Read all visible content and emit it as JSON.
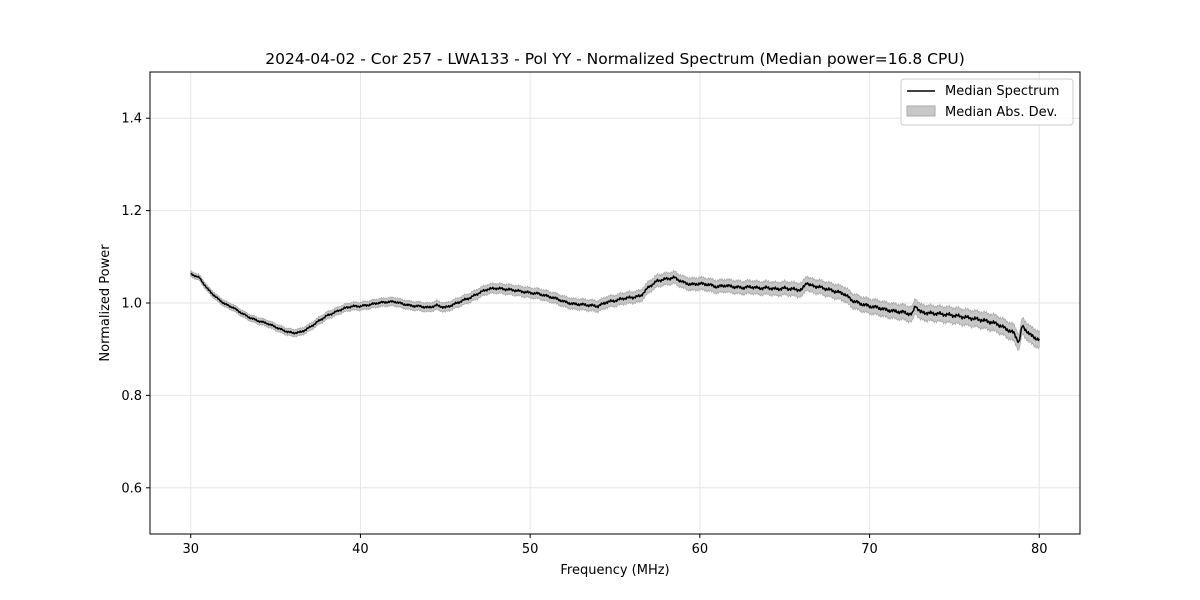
{
  "chart_data": {
    "type": "line",
    "title": "2024-04-02 - Cor 257 - LWA133 - Pol YY - Normalized Spectrum (Median power=16.8 CPU)",
    "xlabel": "Frequency (MHz)",
    "ylabel": "Normalized Power",
    "xlim": [
      27.6,
      82.4
    ],
    "ylim": [
      0.5,
      1.5
    ],
    "xticks": [
      30,
      40,
      50,
      60,
      70,
      80
    ],
    "yticks": [
      0.6,
      0.8,
      1.0,
      1.2,
      1.4
    ],
    "xtick_labels": [
      "30",
      "40",
      "50",
      "60",
      "70",
      "80"
    ],
    "ytick_labels": [
      "0.6",
      "0.8",
      "1.0",
      "1.2",
      "1.4"
    ],
    "grid": true,
    "legend_position": "top-right",
    "colors": {
      "median": "#000000",
      "mad_fill": "#bdbdbd",
      "mad_edge": "#a0a0a0",
      "grid": "#e6e6e6"
    },
    "series": [
      {
        "name": "Median Spectrum",
        "kind": "line",
        "x": [
          30.0,
          30.5,
          31.0,
          31.5,
          32.0,
          32.5,
          33.0,
          33.5,
          34.0,
          34.5,
          35.0,
          35.5,
          36.0,
          36.5,
          37.0,
          37.5,
          38.0,
          38.5,
          39.0,
          39.5,
          40.0,
          40.5,
          41.0,
          41.5,
          42.0,
          42.5,
          43.0,
          43.5,
          44.0,
          44.5,
          45.0,
          45.5,
          46.0,
          46.5,
          47.0,
          47.5,
          48.0,
          48.5,
          49.0,
          49.5,
          50.0,
          50.5,
          51.0,
          51.5,
          52.0,
          52.5,
          53.0,
          53.5,
          54.0,
          54.5,
          55.0,
          55.5,
          56.0,
          56.5,
          57.0,
          57.5,
          58.0,
          58.5,
          59.0,
          59.5,
          60.0,
          60.5,
          61.0,
          61.5,
          62.0,
          62.5,
          63.0,
          63.5,
          64.0,
          64.5,
          65.0,
          65.5,
          66.0,
          66.3,
          66.5,
          67.0,
          67.5,
          68.0,
          68.5,
          69.0,
          69.5,
          70.0,
          70.5,
          71.0,
          71.5,
          72.0,
          72.5,
          72.7,
          73.0,
          73.5,
          74.0,
          74.5,
          75.0,
          75.5,
          76.0,
          76.5,
          77.0,
          77.5,
          78.0,
          78.5,
          78.8,
          79.0,
          79.5,
          80.0
        ],
        "values": [
          1.063,
          1.055,
          1.03,
          1.012,
          0.998,
          0.99,
          0.978,
          0.968,
          0.961,
          0.956,
          0.948,
          0.94,
          0.935,
          0.937,
          0.947,
          0.96,
          0.972,
          0.98,
          0.988,
          0.993,
          0.993,
          0.996,
          1.0,
          1.002,
          1.003,
          0.998,
          0.994,
          0.993,
          0.99,
          0.995,
          0.99,
          0.997,
          1.005,
          1.012,
          1.022,
          1.03,
          1.032,
          1.03,
          1.028,
          1.025,
          1.022,
          1.02,
          1.015,
          1.01,
          1.003,
          0.998,
          0.997,
          0.995,
          0.993,
          1.002,
          1.005,
          1.01,
          1.012,
          1.015,
          1.035,
          1.048,
          1.052,
          1.055,
          1.045,
          1.04,
          1.042,
          1.04,
          1.035,
          1.038,
          1.035,
          1.033,
          1.035,
          1.032,
          1.033,
          1.03,
          1.032,
          1.03,
          1.028,
          1.045,
          1.038,
          1.035,
          1.03,
          1.025,
          1.02,
          1.005,
          0.998,
          0.993,
          0.99,
          0.985,
          0.982,
          0.98,
          0.975,
          0.995,
          0.98,
          0.978,
          0.977,
          0.975,
          0.973,
          0.97,
          0.967,
          0.964,
          0.96,
          0.955,
          0.945,
          0.935,
          0.915,
          0.95,
          0.93,
          0.92
        ]
      },
      {
        "name": "Median Abs. Dev.",
        "kind": "band",
        "halfwidth_start": 0.006,
        "halfwidth_end": 0.018
      }
    ]
  }
}
